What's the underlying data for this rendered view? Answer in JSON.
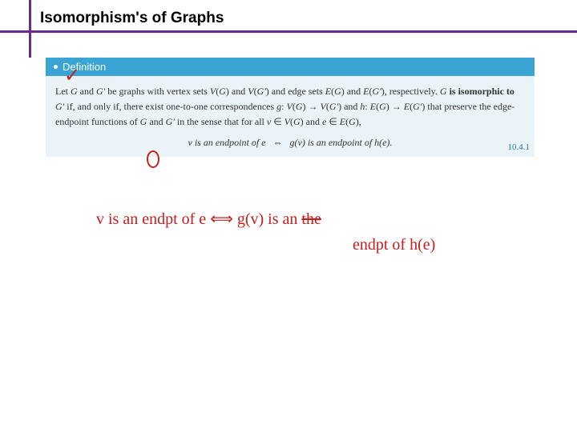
{
  "title": "Isomorphism's of Graphs",
  "definition": {
    "header": "Definition",
    "body_html": "Let <i>G</i> and <i>G'</i> be graphs with vertex sets <i>V</i>(<i>G</i>) and <i>V</i>(<i>G'</i>) and edge sets <i>E</i>(<i>G</i>) and <i>E</i>(<i>G'</i>), respectively. <i>G</i> <b>is isomorphic to</b> <i>G'</i> if, and only if, there exist one-to-one correspondences <i>g</i>: <i>V</i>(<i>G</i>) → <i>V</i>(<i>G'</i>) and <i>h</i>: <i>E</i>(<i>G</i>) → <i>E</i>(<i>G'</i>) that preserve the edge-endpoint functions of <i>G</i> and <i>G'</i> in the sense that for all <i>v</i> ∈ <i>V</i>(<i>G</i>) and <i>e</i> ∈ <i>E</i>(<i>G</i>),",
    "equation": "v is an endpoint of e   ⇔   g(v) is an endpoint of h(e).",
    "eq_number": "10.4.1"
  },
  "annotations": {
    "check": "✓",
    "hand_line1_a": "v is an endpt of e ⟺ ",
    "hand_line1_b": "g(v) is an ",
    "hand_strike": "the",
    "hand_line2": "endpt of h(e)"
  },
  "colors": {
    "purple": "#6b2a8a",
    "header_blue": "#3aa4d4",
    "body_blue": "#eaf3f7",
    "red": "#c41e1e",
    "eqnum": "#2178a8"
  }
}
